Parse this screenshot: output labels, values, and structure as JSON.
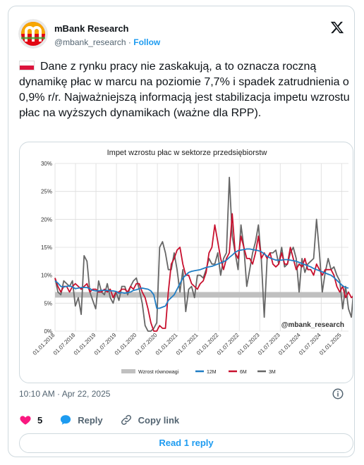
{
  "author": {
    "name": "mBank Research",
    "handle": "@mbank_research",
    "separator": "·",
    "follow_label": "Follow"
  },
  "tweet": {
    "text": "Dane z rynku pracy nie zaskakują, a to oznacza roczną dynamikę płac w marcu na poziomie 7,7% i spadek zatrudnienia o 0,9% r/r. Najważniejszą informacją jest stabilizacja impetu wzrostu płac na wyższych dynamikach (ważne dla RPP).",
    "flag_icon": "poland-flag-icon",
    "timestamp": "10:10 AM · Apr 22, 2025"
  },
  "actions": {
    "like_count": "5",
    "reply_label": "Reply",
    "copy_label": "Copy link",
    "read_replies_label": "Read 1 reply"
  },
  "colors": {
    "accent": "#1d9bf0",
    "like": "#f91880",
    "series_12m": "#1f7dc4",
    "series_6m": "#c8102e",
    "series_3m": "#666666",
    "band": "#c0c0c0"
  },
  "chart_data": {
    "type": "line",
    "title": "Impet wzrostu płac w sektorze przedsiębiorstw",
    "xlabel": "",
    "ylabel": "",
    "ylim": [
      0,
      30
    ],
    "y_ticks": [
      "0%",
      "5%",
      "10%",
      "15%",
      "20%",
      "25%",
      "30%"
    ],
    "x_ticks": [
      "01.01.2018",
      "01.07.2018",
      "01.01.2019",
      "01.07.2019",
      "01.01.2020",
      "01.07.2020",
      "01.01.2021",
      "01.07.2021",
      "01.01.2022",
      "01.07.2022",
      "01.01.2023",
      "01.07.2023",
      "01.01.2024",
      "01.07.2024",
      "01.01.2025"
    ],
    "watermark": "@mbank_research",
    "grid": true,
    "legend_position": "bottom",
    "x_start": "2018-01",
    "x_end": "2025-03",
    "band": {
      "name": "Wzrost równowagi",
      "from": 6.0,
      "to": 7.0
    },
    "series": [
      {
        "name": "12M",
        "values": [
          9.0,
          8.6,
          8.0,
          7.9,
          8.0,
          8.1,
          7.9,
          7.6,
          7.7,
          7.8,
          7.8,
          7.8,
          7.6,
          7.3,
          7.2,
          7.2,
          7.3,
          7.3,
          7.3,
          7.2,
          7.2,
          7.1,
          6.8,
          6.9,
          6.8,
          6.9,
          7.0,
          7.3,
          7.4,
          7.6,
          7.7,
          7.6,
          7.5,
          7.2,
          6.5,
          4.1,
          4.1,
          4.3,
          4.5,
          5.5,
          6.0,
          6.5,
          7.5,
          8.5,
          9.5,
          10.0,
          10.5,
          10.7,
          10.8,
          10.9,
          11.0,
          11.2,
          11.4,
          11.5,
          11.6,
          11.8,
          12.0,
          12.2,
          12.4,
          12.7,
          13.2,
          13.6,
          14.1,
          14.4,
          14.5,
          14.6,
          14.7,
          14.7,
          14.6,
          14.5,
          14.4,
          14.2,
          13.8,
          13.4,
          13.1,
          12.9,
          12.7,
          12.7,
          12.7,
          12.8,
          12.8,
          12.7,
          12.6,
          12.5,
          12.3,
          12.1,
          11.9,
          11.7,
          11.5,
          11.2,
          11.0,
          10.8,
          10.6,
          10.4,
          10.2,
          10.0,
          9.6,
          9.1,
          8.6,
          8.1,
          7.8,
          7.7
        ]
      },
      {
        "name": "6M",
        "values": [
          9.5,
          8.0,
          7.0,
          8.0,
          8.0,
          7.0,
          8.0,
          8.5,
          8.0,
          7.5,
          8.0,
          8.5,
          7.0,
          7.5,
          7.5,
          7.0,
          7.0,
          7.5,
          7.0,
          7.5,
          6.0,
          7.0,
          7.0,
          7.5,
          7.5,
          7.0,
          8.0,
          7.5,
          8.5,
          8.5,
          7.0,
          6.0,
          4.0,
          1.5,
          0.0,
          0.0,
          1.0,
          0.5,
          0.5,
          7.0,
          12.0,
          13.0,
          14.5,
          15.0,
          12.0,
          10.0,
          10.0,
          8.5,
          8.0,
          7.5,
          8.5,
          9.0,
          10.5,
          14.0,
          15.0,
          19.0,
          16.0,
          13.0,
          11.0,
          13.0,
          14.0,
          21.0,
          14.0,
          13.0,
          17.0,
          15.0,
          13.0,
          13.0,
          12.0,
          14.0,
          17.0,
          13.0,
          14.0,
          13.0,
          14.0,
          12.0,
          11.5,
          12.0,
          14.0,
          12.0,
          12.0,
          15.0,
          13.0,
          11.0,
          12.0,
          11.5,
          13.0,
          11.0,
          11.0,
          10.0,
          12.0,
          11.0,
          10.0,
          11.0,
          11.0,
          11.0,
          10.0,
          8.0,
          7.0,
          8.0,
          6.0,
          7.0,
          6.0,
          6.4
        ]
      },
      {
        "name": "3M",
        "values": [
          9.5,
          7.0,
          6.5,
          9.0,
          8.5,
          8.0,
          9.0,
          4.5,
          6.0,
          3.0,
          13.5,
          12.5,
          7.0,
          5.5,
          4.0,
          9.0,
          7.0,
          6.5,
          8.5,
          6.0,
          5.0,
          7.0,
          5.5,
          8.0,
          8.0,
          6.5,
          8.0,
          9.0,
          9.5,
          7.5,
          5.0,
          1.0,
          0.0,
          0.0,
          0.5,
          1.5,
          15.0,
          16.0,
          14.0,
          11.0,
          11.0,
          14.0,
          11.0,
          7.0,
          11.0,
          3.5,
          7.5,
          8.0,
          6.0,
          10.0,
          10.0,
          9.5,
          11.0,
          13.0,
          12.0,
          12.0,
          14.0,
          10.0,
          13.0,
          14.0,
          27.5,
          17.0,
          14.0,
          11.0,
          19.0,
          15.0,
          8.0,
          11.0,
          14.0,
          16.0,
          19.0,
          13.0,
          2.5,
          13.0,
          14.0,
          14.0,
          14.5,
          12.0,
          15.0,
          11.5,
          12.0,
          14.0,
          15.0,
          13.0,
          7.0,
          13.0,
          10.5,
          12.0,
          12.5,
          13.0,
          20.0,
          14.0,
          7.0,
          10.5,
          13.0,
          11.0,
          11.5,
          10.0,
          9.0,
          4.0,
          8.0,
          4.0,
          2.5,
          8.8
        ]
      }
    ]
  }
}
